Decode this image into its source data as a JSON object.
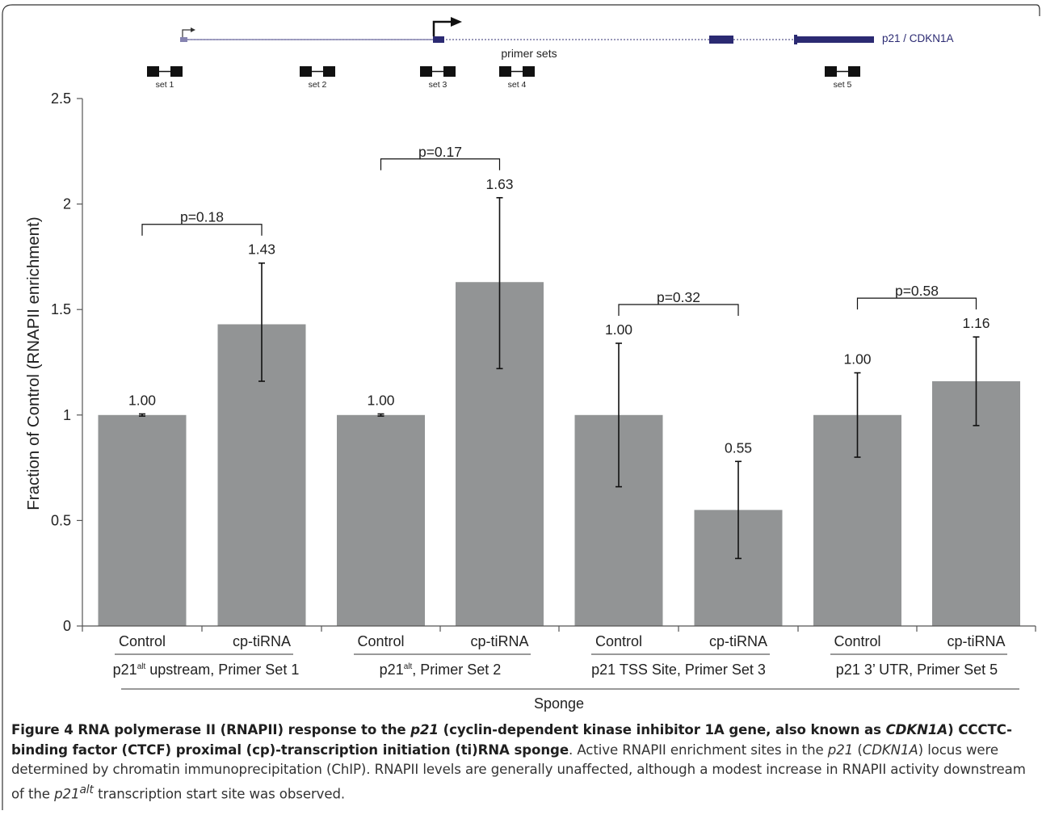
{
  "gene_diagram": {
    "gene_label": "p21 / CDKN1A",
    "primer_sets_label": "primer sets",
    "primer_sets": [
      "set 1",
      "set 2",
      "set 3",
      "set 4",
      "set 5"
    ],
    "line_color": "#2b2a72"
  },
  "chart_data": {
    "type": "bar",
    "ylabel": "Fraction of Control (RNAPII enrichment)",
    "xlabel": "Sponge",
    "ylim": [
      0,
      2.5
    ],
    "yticks": [
      "0",
      "0.5",
      "1",
      "1.5",
      "2",
      "2.5"
    ],
    "ytick_values": [
      0,
      0.5,
      1,
      1.5,
      2,
      2.5
    ],
    "bar_color": "#929495",
    "groups": [
      {
        "label_main": "p21",
        "label_sup": "alt",
        "label_rest": " upstream, Primer Set 1",
        "p_value": "p=0.18",
        "bars": [
          {
            "category": "Control",
            "value": 1.0,
            "value_label": "1.00",
            "err_low": 0.995,
            "err_high": 1.005
          },
          {
            "category": "cp-tiRNA",
            "value": 1.43,
            "value_label": "1.43",
            "err_low": 1.16,
            "err_high": 1.72
          }
        ]
      },
      {
        "label_main": "p21",
        "label_sup": "alt",
        "label_rest": ", Primer Set 2",
        "p_value": "p=0.17",
        "bars": [
          {
            "category": "Control",
            "value": 1.0,
            "value_label": "1.00",
            "err_low": 0.995,
            "err_high": 1.005
          },
          {
            "category": "cp-tiRNA",
            "value": 1.63,
            "value_label": "1.63",
            "err_low": 1.22,
            "err_high": 2.03
          }
        ]
      },
      {
        "label_main": "p21 TSS Site, Primer Set 3",
        "label_sup": "",
        "label_rest": "",
        "p_value": "p=0.32",
        "bars": [
          {
            "category": "Control",
            "value": 1.0,
            "value_label": "1.00",
            "err_low": 0.66,
            "err_high": 1.34
          },
          {
            "category": "cp-tiRNA",
            "value": 0.55,
            "value_label": "0.55",
            "err_low": 0.32,
            "err_high": 0.78
          }
        ]
      },
      {
        "label_main": "p21 3’ UTR, Primer Set 5",
        "label_sup": "",
        "label_rest": "",
        "p_value": "p=0.58",
        "bars": [
          {
            "category": "Control",
            "value": 1.0,
            "value_label": "1.00",
            "err_low": 0.8,
            "err_high": 1.2
          },
          {
            "category": "cp-tiRNA",
            "value": 1.16,
            "value_label": "1.16",
            "err_low": 0.95,
            "err_high": 1.37
          }
        ]
      }
    ]
  },
  "caption": {
    "b1": "Figure 4 RNA polymerase II (RNAPII) response to the ",
    "b2": "p21",
    "b3": " (cyclin-dependent kinase inhibitor 1A gene, also known as ",
    "b4": "CDKN1A",
    "b5": ") CCCTC-binding factor (CTCF) proximal (cp)-transcription initiation (ti)RNA sponge",
    "t1": ". Active RNAPII enrichment sites in the ",
    "t2": "p21",
    "t3": " (",
    "t4": "CDKN1A",
    "t5": ") locus were determined by chromatin immunoprecipitation (ChIP). RNAPII levels are generally unaffected, although a modest increase in RNAPII activity downstream of the ",
    "t6": "p21",
    "t7": "alt",
    "t8": " transcription start site was observed."
  }
}
